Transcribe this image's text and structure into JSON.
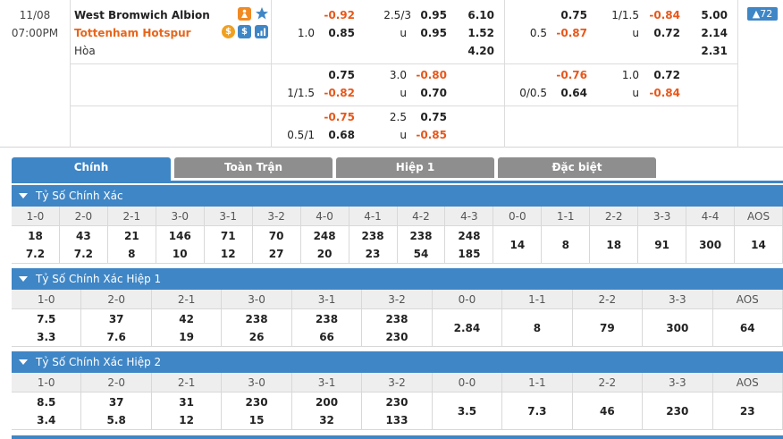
{
  "match": {
    "date": "11/08",
    "time": "07:00PM",
    "home": "West Bromwich Albion",
    "away": "Tottenham Hotspur",
    "draw": "Hòa",
    "more_count": "72"
  },
  "odds_rows": [
    {
      "ft": {
        "h_line": "",
        "h_odd": "-0.92",
        "goal_line": "2.5/3",
        "over": "0.95",
        "x12_1": "6.10",
        "a_line": "1.0",
        "a_odd": "0.85",
        "under_lbl": "u",
        "under": "0.95",
        "x12_2": "1.52",
        "x12_x": "4.20"
      },
      "h1": {
        "h_line": "",
        "h_odd": "0.75",
        "goal_line": "1/1.5",
        "over": "-0.84",
        "x12_1": "5.00",
        "a_line": "0.5",
        "a_odd": "-0.87",
        "under_lbl": "u",
        "under": "0.72",
        "x12_2": "2.14",
        "x12_x": "2.31"
      }
    },
    {
      "ft": {
        "h_line": "",
        "h_odd": "0.75",
        "goal_line": "3.0",
        "over": "-0.80",
        "a_line": "1/1.5",
        "a_odd": "-0.82",
        "under_lbl": "u",
        "under": "0.70"
      },
      "h1": {
        "h_line": "",
        "h_odd": "-0.76",
        "goal_line": "1.0",
        "over": "0.72",
        "a_line": "0/0.5",
        "a_odd": "0.64",
        "under_lbl": "u",
        "under": "-0.84"
      }
    },
    {
      "ft": {
        "h_line": "",
        "h_odd": "-0.75",
        "goal_line": "2.5",
        "over": "0.75",
        "a_line": "0.5/1",
        "a_odd": "0.68",
        "under_lbl": "u",
        "under": "-0.85"
      }
    }
  ],
  "tabs": [
    "Chính",
    "Toàn Trận",
    "Hiệp 1",
    "Đặc biệt"
  ],
  "sections": [
    {
      "title": "Tỷ Số Chính Xác",
      "headers": [
        "1-0",
        "2-0",
        "2-1",
        "3-0",
        "3-1",
        "3-2",
        "4-0",
        "4-1",
        "4-2",
        "4-3",
        "0-0",
        "1-1",
        "2-2",
        "3-3",
        "4-4",
        "AOS"
      ],
      "top": [
        "18",
        "43",
        "21",
        "146",
        "71",
        "70",
        "248",
        "238",
        "238",
        "248",
        "14",
        "8",
        "18",
        "91",
        "300",
        "14"
      ],
      "bottom": [
        "7.2",
        "7.2",
        "8",
        "10",
        "12",
        "27",
        "20",
        "23",
        "54",
        "185",
        "",
        "",
        "",
        "",
        "",
        ""
      ]
    },
    {
      "title": "Tỷ Số Chính Xác Hiệp 1",
      "headers": [
        "1-0",
        "2-0",
        "2-1",
        "3-0",
        "3-1",
        "3-2",
        "0-0",
        "1-1",
        "2-2",
        "3-3",
        "AOS"
      ],
      "top": [
        "7.5",
        "37",
        "42",
        "238",
        "238",
        "238",
        "2.84",
        "8",
        "79",
        "300",
        "64"
      ],
      "bottom": [
        "3.3",
        "7.6",
        "19",
        "26",
        "66",
        "230",
        "",
        "",
        "",
        "",
        ""
      ]
    },
    {
      "title": "Tỷ Số Chính Xác Hiệp 2",
      "headers": [
        "1-0",
        "2-0",
        "2-1",
        "3-0",
        "3-1",
        "3-2",
        "0-0",
        "1-1",
        "2-2",
        "3-3",
        "AOS"
      ],
      "top": [
        "8.5",
        "37",
        "31",
        "230",
        "200",
        "230",
        "3.5",
        "7.3",
        "46",
        "230",
        "23"
      ],
      "bottom": [
        "3.4",
        "5.8",
        "12",
        "15",
        "32",
        "133",
        "",
        "",
        "",
        "",
        ""
      ]
    }
  ],
  "colors": {
    "accent": "#3f86c6",
    "negative": "#e8571a",
    "away_team": "#e8651a",
    "tab_inactive": "#8e8e8e"
  },
  "icons": [
    "live-stream-icon",
    "favorite-star-icon",
    "coin-icon",
    "dollar-icon",
    "stats-icon"
  ]
}
